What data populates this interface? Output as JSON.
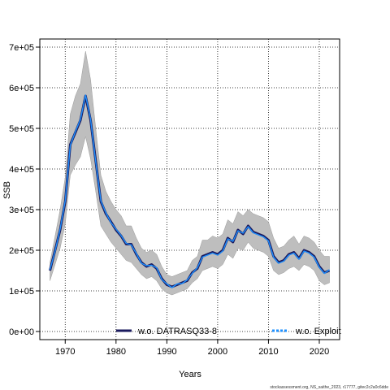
{
  "chart_data": {
    "type": "line",
    "xlabel": "Years",
    "ylabel": "SSB",
    "xlim": [
      1965,
      2024
    ],
    "ylim": [
      -20000,
      720000
    ],
    "x_ticks": [
      "1970",
      "1980",
      "1990",
      "2000",
      "2010",
      "2020"
    ],
    "y_ticks": [
      "0e+00",
      "1e+05",
      "2e+05",
      "3e+05",
      "4e+05",
      "5e+05",
      "6e+05",
      "7e+05"
    ],
    "grid": true,
    "legend_position": "bottom",
    "colors": {
      "band": "#bebebe",
      "series_dark": "#1a1a5e",
      "series_light": "#1e90ff"
    },
    "series": [
      {
        "name": "w.o. DATRASQ33-8",
        "style": "solid-dark",
        "x": [
          1967,
          1968,
          1969,
          1970,
          1971,
          1972,
          1973,
          1974,
          1975,
          1976,
          1977,
          1978,
          1979,
          1980,
          1981,
          1982,
          1983,
          1984,
          1985,
          1986,
          1987,
          1988,
          1989,
          1990,
          1991,
          1992,
          1993,
          1994,
          1995,
          1996,
          1997,
          1998,
          1999,
          2000,
          2001,
          2002,
          2003,
          2004,
          2005,
          2006,
          2007,
          2008,
          2009,
          2010,
          2011,
          2012,
          2013,
          2014,
          2015,
          2016,
          2017,
          2018,
          2019,
          2020,
          2021,
          2022
        ],
        "values": [
          150000,
          200000,
          250000,
          320000,
          460000,
          490000,
          520000,
          580000,
          520000,
          420000,
          320000,
          290000,
          270000,
          250000,
          235000,
          215000,
          215000,
          190000,
          170000,
          160000,
          165000,
          155000,
          130000,
          115000,
          110000,
          115000,
          120000,
          125000,
          145000,
          155000,
          185000,
          190000,
          195000,
          190000,
          200000,
          230000,
          220000,
          250000,
          240000,
          260000,
          245000,
          240000,
          235000,
          225000,
          185000,
          170000,
          175000,
          190000,
          195000,
          180000,
          200000,
          195000,
          185000,
          160000,
          145000,
          150000
        ]
      },
      {
        "name": "w.o. Exploit",
        "style": "dashed-light",
        "x": [
          1967,
          1968,
          1969,
          1970,
          1971,
          1972,
          1973,
          1974,
          1975,
          1976,
          1977,
          1978,
          1979,
          1980,
          1981,
          1982,
          1983,
          1984,
          1985,
          1986,
          1987,
          1988,
          1989,
          1990,
          1991,
          1992,
          1993,
          1994,
          1995,
          1996,
          1997,
          1998,
          1999,
          2000,
          2001,
          2002,
          2003,
          2004,
          2005,
          2006,
          2007,
          2008,
          2009,
          2010,
          2011,
          2012,
          2013,
          2014,
          2015,
          2016,
          2017,
          2018,
          2019,
          2020,
          2021,
          2022
        ],
        "values": [
          152000,
          198000,
          252000,
          322000,
          458000,
          492000,
          522000,
          582000,
          522000,
          418000,
          322000,
          292000,
          268000,
          252000,
          236000,
          217000,
          213000,
          192000,
          168000,
          162000,
          163000,
          157000,
          128000,
          117000,
          108000,
          117000,
          118000,
          127000,
          143000,
          157000,
          183000,
          188000,
          193000,
          188000,
          198000,
          228000,
          222000,
          248000,
          242000,
          258000,
          243000,
          238000,
          233000,
          223000,
          183000,
          168000,
          173000,
          188000,
          193000,
          178000,
          198000,
          193000,
          183000,
          158000,
          143000,
          152000
        ]
      }
    ],
    "band_upper": [
      170000,
      235000,
      300000,
      380000,
      535000,
      580000,
      610000,
      690000,
      620000,
      500000,
      385000,
      345000,
      320000,
      300000,
      285000,
      260000,
      260000,
      230000,
      205000,
      195000,
      200000,
      190000,
      160000,
      140000,
      135000,
      140000,
      145000,
      150000,
      175000,
      185000,
      225000,
      225000,
      235000,
      230000,
      240000,
      275000,
      265000,
      295000,
      285000,
      300000,
      290000,
      285000,
      280000,
      270000,
      230000,
      205000,
      210000,
      225000,
      235000,
      215000,
      235000,
      230000,
      220000,
      200000,
      185000,
      185000
    ],
    "band_lower": [
      125000,
      165000,
      205000,
      265000,
      385000,
      410000,
      430000,
      480000,
      425000,
      345000,
      260000,
      240000,
      220000,
      205000,
      190000,
      175000,
      170000,
      155000,
      140000,
      130000,
      135000,
      125000,
      105000,
      95000,
      90000,
      95000,
      100000,
      105000,
      120000,
      130000,
      150000,
      155000,
      160000,
      155000,
      165000,
      190000,
      180000,
      205000,
      200000,
      220000,
      205000,
      200000,
      195000,
      185000,
      150000,
      140000,
      145000,
      155000,
      160000,
      150000,
      165000,
      160000,
      150000,
      125000,
      115000,
      120000
    ]
  },
  "footer": "stockassessment.org, NS_saithe_2023, r17777, gitec2c2a0c6dde"
}
